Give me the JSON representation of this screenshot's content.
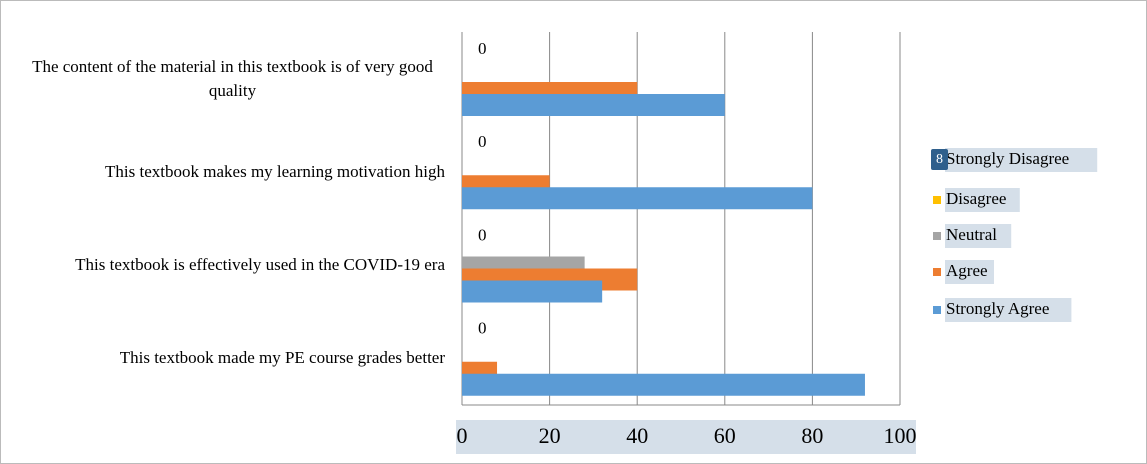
{
  "chart_data": {
    "type": "hbar",
    "categories": [
      "The content of the material in this textbook is of very good quality",
      "This textbook makes my learning motivation high",
      "This textbook is effectively used in the COVID-19 era",
      "This textbook made my PE course grades better"
    ],
    "series": [
      {
        "name": "Strongly Disagree",
        "color": "#4472c4",
        "values": [
          0,
          0,
          0,
          0
        ]
      },
      {
        "name": "Disagree",
        "color": "#ffc000",
        "values": [
          0,
          0,
          0,
          0
        ]
      },
      {
        "name": "Neutral",
        "color": "#a5a5a5",
        "values": [
          0,
          0,
          28,
          0
        ]
      },
      {
        "name": "Agree",
        "color": "#ed7d31",
        "values": [
          40,
          20,
          40,
          8
        ]
      },
      {
        "name": "Strongly Agree",
        "color": "#5b9bd5",
        "values": [
          60,
          80,
          32,
          92
        ]
      }
    ],
    "xlim": [
      0,
      100
    ],
    "xticks": [
      0,
      20,
      40,
      60,
      80,
      100
    ],
    "grid": true,
    "legend": "right",
    "annotation": "8"
  }
}
